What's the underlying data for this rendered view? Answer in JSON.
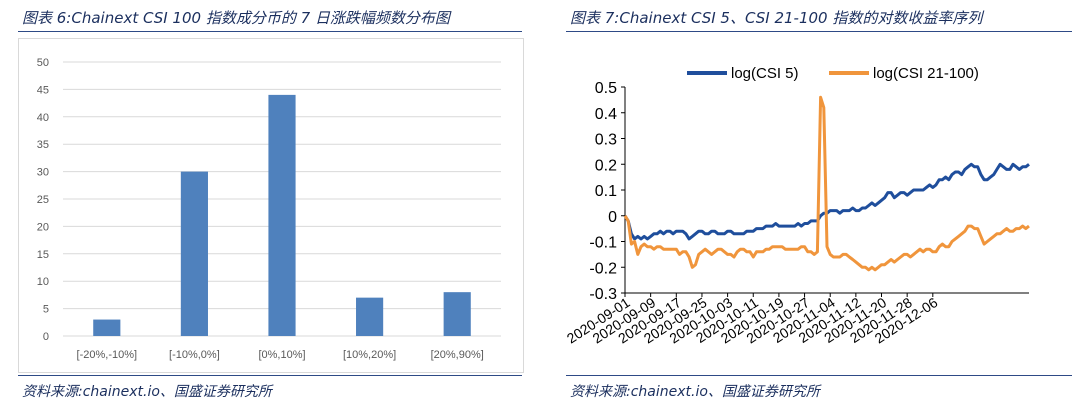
{
  "left": {
    "figure_title": "图表 6:Chainext CSI 100 指数成分币的 7 日涨跌幅频数分布图",
    "source": "资料来源:chainext.io、国盛证券研究所",
    "chart_data": {
      "type": "bar",
      "categories": [
        "[-20%,-10%]",
        "[-10%,0%]",
        "[0%,10%]",
        "[10%,20%]",
        "[20%,90%]"
      ],
      "values": [
        3,
        30,
        44,
        7,
        8
      ],
      "ylim": [
        0,
        50
      ],
      "yticks": [
        0,
        5,
        10,
        15,
        20,
        25,
        30,
        35,
        40,
        45,
        50
      ],
      "grid": "horizontal",
      "bar_color": "#4f81bd",
      "xlabel": "",
      "ylabel": ""
    }
  },
  "right": {
    "figure_title": "图表 7:Chainext CSI 5、CSI 21-100 指数的对数收益率序列",
    "source": "资料来源:chainext.io、国盛证券研究所",
    "chart_data": {
      "type": "line",
      "x_tick_labels": [
        "2020-09-01",
        "2020-09-09",
        "2020-09-17",
        "2020-09-25",
        "2020-10-03",
        "2020-10-11",
        "2020-10-19",
        "2020-10-27",
        "2020-11-04",
        "2020-11-12",
        "2020-11-20",
        "2020-11-28",
        "2020-12-06"
      ],
      "x_start": "2020-09-01",
      "ylim": [
        -0.3,
        0.5
      ],
      "yticks": [
        "-0.3",
        "-0.2",
        "-0.1",
        "0",
        "0.1",
        "0.2",
        "0.3",
        "0.4",
        "0.5"
      ],
      "legend_position": "top",
      "series": [
        {
          "name": "log(CSI 5)",
          "color": "#1f4e9c",
          "values": [
            0,
            -0.02,
            -0.07,
            -0.09,
            -0.08,
            -0.09,
            -0.08,
            -0.09,
            -0.08,
            -0.07,
            -0.07,
            -0.06,
            -0.07,
            -0.06,
            -0.06,
            -0.07,
            -0.06,
            -0.06,
            -0.06,
            -0.07,
            -0.09,
            -0.08,
            -0.07,
            -0.06,
            -0.06,
            -0.07,
            -0.07,
            -0.06,
            -0.06,
            -0.07,
            -0.07,
            -0.07,
            -0.06,
            -0.06,
            -0.07,
            -0.07,
            -0.07,
            -0.07,
            -0.06,
            -0.06,
            -0.06,
            -0.05,
            -0.05,
            -0.05,
            -0.04,
            -0.04,
            -0.04,
            -0.03,
            -0.04,
            -0.04,
            -0.04,
            -0.04,
            -0.04,
            -0.04,
            -0.03,
            -0.04,
            -0.03,
            -0.03,
            -0.02,
            -0.02,
            -0.02,
            0,
            0.01,
            0.01,
            0.02,
            0.02,
            0.02,
            0.01,
            0.02,
            0.02,
            0.02,
            0.03,
            0.02,
            0.02,
            0.03,
            0.03,
            0.04,
            0.05,
            0.04,
            0.05,
            0.06,
            0.07,
            0.09,
            0.09,
            0.07,
            0.08,
            0.09,
            0.09,
            0.08,
            0.09,
            0.1,
            0.1,
            0.1,
            0.1,
            0.11,
            0.12,
            0.11,
            0.12,
            0.14,
            0.14,
            0.15,
            0.14,
            0.16,
            0.17,
            0.17,
            0.16,
            0.18,
            0.19,
            0.2,
            0.19,
            0.19,
            0.16,
            0.14,
            0.14,
            0.15,
            0.16,
            0.18,
            0.2,
            0.19,
            0.18,
            0.18,
            0.2,
            0.19,
            0.18,
            0.19,
            0.19,
            0.2
          ]
        },
        {
          "name": "log(CSI 21-100)",
          "color": "#f0953c",
          "values": [
            0,
            -0.02,
            -0.11,
            -0.1,
            -0.15,
            -0.12,
            -0.11,
            -0.12,
            -0.12,
            -0.13,
            -0.12,
            -0.12,
            -0.13,
            -0.13,
            -0.13,
            -0.13,
            -0.13,
            -0.15,
            -0.14,
            -0.14,
            -0.16,
            -0.2,
            -0.19,
            -0.15,
            -0.14,
            -0.13,
            -0.14,
            -0.15,
            -0.14,
            -0.13,
            -0.13,
            -0.14,
            -0.15,
            -0.15,
            -0.16,
            -0.14,
            -0.13,
            -0.13,
            -0.14,
            -0.14,
            -0.16,
            -0.14,
            -0.14,
            -0.14,
            -0.13,
            -0.13,
            -0.12,
            -0.12,
            -0.12,
            -0.12,
            -0.13,
            -0.13,
            -0.13,
            -0.13,
            -0.13,
            -0.12,
            -0.12,
            -0.14,
            -0.14,
            -0.15,
            -0.14,
            0.46,
            0.42,
            -0.12,
            -0.15,
            -0.16,
            -0.16,
            -0.16,
            -0.15,
            -0.15,
            -0.16,
            -0.17,
            -0.18,
            -0.19,
            -0.2,
            -0.2,
            -0.21,
            -0.2,
            -0.21,
            -0.2,
            -0.19,
            -0.19,
            -0.18,
            -0.17,
            -0.18,
            -0.17,
            -0.16,
            -0.15,
            -0.15,
            -0.16,
            -0.15,
            -0.14,
            -0.13,
            -0.14,
            -0.13,
            -0.13,
            -0.14,
            -0.14,
            -0.12,
            -0.11,
            -0.12,
            -0.12,
            -0.1,
            -0.09,
            -0.08,
            -0.07,
            -0.06,
            -0.04,
            -0.04,
            -0.05,
            -0.05,
            -0.08,
            -0.11,
            -0.1,
            -0.09,
            -0.08,
            -0.07,
            -0.07,
            -0.06,
            -0.05,
            -0.06,
            -0.06,
            -0.05,
            -0.05,
            -0.04,
            -0.05,
            -0.04
          ]
        }
      ]
    }
  }
}
